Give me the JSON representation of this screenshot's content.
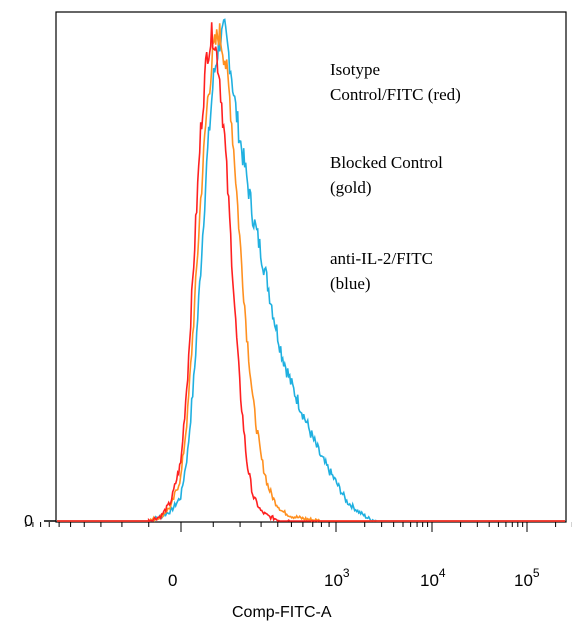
{
  "chart_data": {
    "type": "line",
    "title": "",
    "xlabel": "Comp-FITC-A",
    "ylabel": "",
    "x_scale": "biexponential (logicle)",
    "y_tick_labels": [
      "0"
    ],
    "x_tick_labels": [
      {
        "base": "0",
        "exp": ""
      },
      {
        "base": "10",
        "exp": "3"
      },
      {
        "base": "10",
        "exp": "4"
      },
      {
        "base": "10",
        "exp": "5"
      }
    ],
    "grid": false,
    "legend": [
      {
        "line1": "Isotype",
        "line2": "Control/FITC (red)"
      },
      {
        "line1": "Blocked Control",
        "line2": "(gold)"
      },
      {
        "line1": "anti-IL-2/FITC",
        "line2": "(blue)"
      }
    ],
    "series": [
      {
        "name": "Isotype Control/FITC (red)",
        "color": "#ff2020",
        "x": [
          -100,
          -60,
          -30,
          0,
          20,
          40,
          60,
          80,
          100,
          120,
          140,
          160,
          180,
          200,
          230,
          260,
          300,
          340,
          380,
          430,
          500
        ],
        "y": [
          0,
          0.01,
          0.04,
          0.12,
          0.3,
          0.55,
          0.8,
          0.96,
          1.0,
          0.92,
          0.78,
          0.6,
          0.42,
          0.27,
          0.12,
          0.05,
          0.02,
          0.01,
          0.005,
          0,
          0
        ]
      },
      {
        "name": "Blocked Control (gold)",
        "color": "#ff9020",
        "x": [
          -100,
          -60,
          -30,
          0,
          20,
          40,
          60,
          80,
          100,
          120,
          140,
          160,
          180,
          200,
          230,
          260,
          300,
          340,
          380,
          430,
          500,
          600,
          800
        ],
        "y": [
          0,
          0.01,
          0.03,
          0.09,
          0.22,
          0.43,
          0.66,
          0.85,
          0.96,
          1.0,
          0.95,
          0.86,
          0.72,
          0.57,
          0.38,
          0.24,
          0.13,
          0.07,
          0.04,
          0.02,
          0.01,
          0.005,
          0
        ]
      },
      {
        "name": "anti-IL-2/FITC (blue)",
        "color": "#20b0e0",
        "x": [
          -100,
          -60,
          -30,
          0,
          20,
          40,
          60,
          80,
          100,
          120,
          140,
          160,
          180,
          200,
          230,
          260,
          300,
          340,
          380,
          430,
          500,
          600,
          700,
          800,
          1000,
          1300,
          1700,
          2200,
          2700
        ],
        "y": [
          0,
          0.01,
          0.02,
          0.05,
          0.14,
          0.3,
          0.52,
          0.74,
          0.9,
          0.98,
          1.0,
          0.94,
          0.85,
          0.78,
          0.7,
          0.62,
          0.55,
          0.48,
          0.41,
          0.34,
          0.28,
          0.22,
          0.17,
          0.13,
          0.08,
          0.04,
          0.02,
          0.005,
          0
        ]
      }
    ]
  }
}
